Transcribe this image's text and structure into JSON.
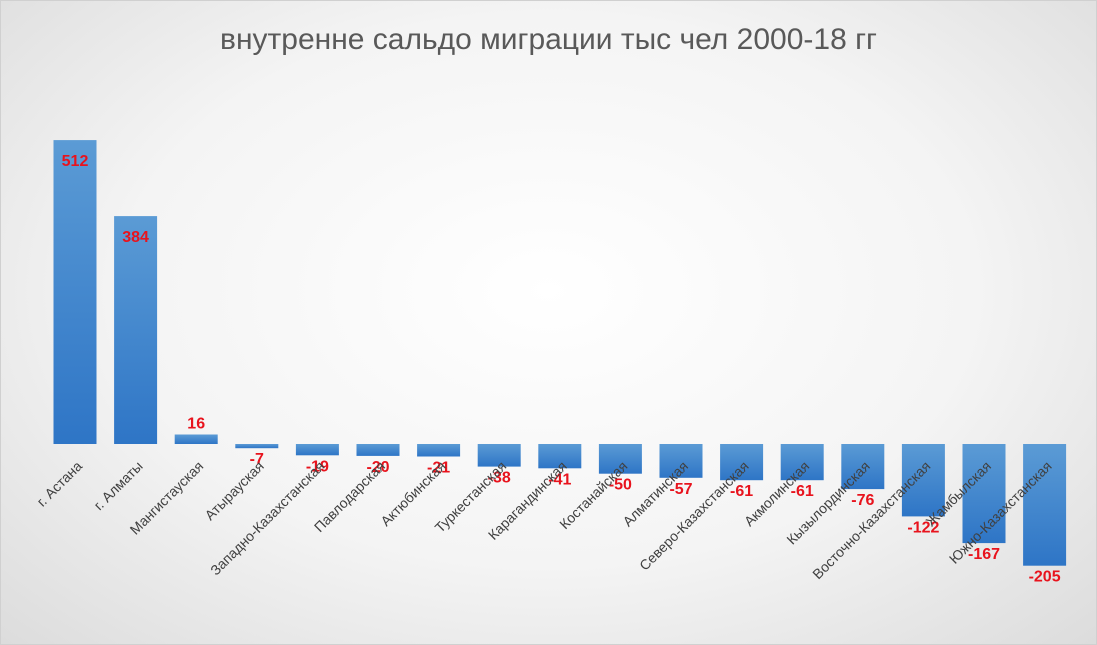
{
  "chart_data": {
    "type": "bar",
    "title": "внутренне сальдо миграции тыс чел 2000-18 гг",
    "categories": [
      "г. Астана",
      "г. Алматы",
      "Мангистауская",
      "Атырауская",
      "Западно-Казахстанская",
      "Павлодарская",
      "Актюбинская",
      "Туркестанская",
      "Карагандинская",
      "Костанайская",
      "Алматинская",
      "Северо-Казахстанская",
      "Акмолинская",
      "Кызылординская",
      "Восточно-Казахстанская",
      "Жамбылская",
      "Южно-Казахстанская"
    ],
    "values": [
      512,
      384,
      16,
      -7,
      -19,
      -20,
      -21,
      -38,
      -41,
      -50,
      -57,
      -61,
      -61,
      -76,
      -122,
      -167,
      -205
    ],
    "data_labels": [
      "512",
      "384",
      "16",
      "-7",
      "-19",
      "-20",
      "-21",
      "-38",
      "-41",
      "-50",
      "-57",
      "-61",
      "-61",
      "-76",
      "-122",
      "-167",
      "-205"
    ],
    "xlabel": "",
    "ylabel": "",
    "ylim": [
      -220,
      540
    ],
    "grid": false,
    "legend": "none",
    "colors": {
      "bar_top": "#5b9bd5",
      "bar_bottom": "#2e75c6",
      "label": "#e8131d",
      "title": "#595959"
    }
  }
}
